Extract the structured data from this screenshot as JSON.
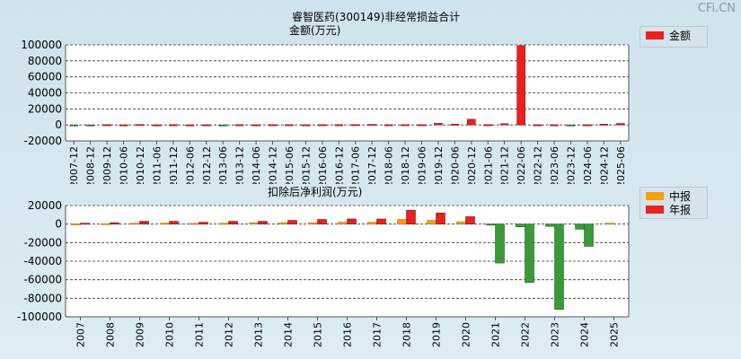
{
  "watermark": "CFi.CN",
  "top": {
    "title": "睿智医药(300149)非经常损益合计",
    "subtitle": "金额(万元)",
    "legend": [
      {
        "label": "金额",
        "color": "#e82020"
      }
    ]
  },
  "bottom": {
    "title": "扣除后净利润(万元)",
    "legend": [
      {
        "label": "中报",
        "color": "#f5a000"
      },
      {
        "label": "年报",
        "color": "#e82020"
      }
    ]
  },
  "chart_data": [
    {
      "type": "bar",
      "title": "睿智医药(300149)非经常损益合计",
      "ylabel": "金额(万元)",
      "ylim": [
        -20000,
        100000
      ],
      "yticks": [
        100000,
        80000,
        60000,
        40000,
        20000,
        0,
        -20000
      ],
      "grid": true,
      "legend_position": "top-right",
      "categories": [
        "2007-12",
        "2008-12",
        "2009-12",
        "2010-06",
        "2010-12",
        "2011-06",
        "2011-12",
        "2012-06",
        "2012-12",
        "2013-06",
        "2013-12",
        "2014-06",
        "2014-12",
        "2015-06",
        "2015-12",
        "2016-06",
        "2016-12",
        "2017-06",
        "2017-12",
        "2018-06",
        "2018-12",
        "2019-06",
        "2019-12",
        "2020-06",
        "2020-12",
        "2021-06",
        "2021-12",
        "2022-06",
        "2022-12",
        "2023-06",
        "2023-12",
        "2024-06",
        "2024-12",
        "2025-06"
      ],
      "series": [
        {
          "name": "金额",
          "color": "#e82020",
          "values": [
            -300,
            -1000,
            300,
            100,
            500,
            100,
            300,
            100,
            200,
            -1200,
            300,
            200,
            300,
            300,
            200,
            300,
            300,
            400,
            600,
            300,
            300,
            300,
            2000,
            900,
            7000,
            300,
            1500,
            99000,
            200,
            200,
            -100,
            200,
            1000,
            1800
          ]
        }
      ]
    },
    {
      "type": "bar",
      "title": "扣除后净利润(万元)",
      "ylim": [
        -100000,
        20000
      ],
      "yticks": [
        20000,
        0,
        -20000,
        -40000,
        -60000,
        -80000,
        -100000
      ],
      "grid": true,
      "legend_position": "top-right",
      "categories": [
        "2007",
        "2008",
        "2009",
        "2010",
        "2011",
        "2012",
        "2013",
        "2014",
        "2015",
        "2016",
        "2017",
        "2018",
        "2019",
        "2020",
        "2021",
        "2022",
        "2023",
        "2024",
        "2025"
      ],
      "series": [
        {
          "name": "中报",
          "color": "#f5a000",
          "values": [
            300,
            500,
            1000,
            1000,
            800,
            900,
            1500,
            1500,
            1500,
            2000,
            2000,
            5000,
            4000,
            2500,
            -1000,
            -3000,
            -2500,
            -5500,
            1000
          ]
        },
        {
          "name": "年报",
          "color": "#e82020",
          "values": [
            1000,
            1500,
            3000,
            3000,
            2000,
            3000,
            3000,
            4000,
            5000,
            5500,
            5500,
            15000,
            12000,
            8000,
            -42000,
            -63000,
            -92000,
            -24000,
            null
          ]
        }
      ]
    }
  ]
}
